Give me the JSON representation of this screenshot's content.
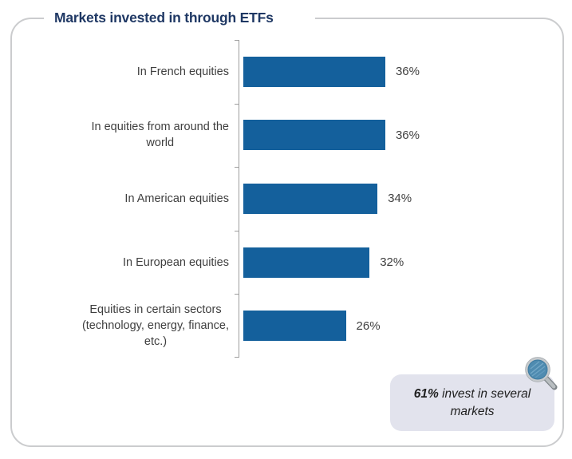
{
  "title": "Markets invested in through ETFs",
  "chart_data": {
    "type": "bar",
    "orientation": "horizontal",
    "title": "Markets invested in through ETFs",
    "categories": [
      "In French equities",
      "In equities from around the\nworld",
      "In American equities",
      "In European equities",
      "Equities in certain sectors\n(technology, energy, finance,\netc.)"
    ],
    "values": [
      36,
      36,
      34,
      32,
      26
    ],
    "value_labels": [
      "36%",
      "36%",
      "34%",
      "32%",
      "26%"
    ],
    "unit": "%",
    "xlim": [
      0,
      40
    ],
    "gridlines": false,
    "legend": false,
    "bar_color": "#14609c"
  },
  "callout": {
    "stat": "61%",
    "text": "invest in several markets"
  },
  "icons": {
    "magnifier": "magnifier-icon"
  },
  "colors": {
    "bar": "#14609c",
    "title": "#1f3864",
    "label": "#3f3f3f",
    "axis": "#9e9e9e",
    "frame_border": "#cbccce",
    "callout_bg": "#e2e3ed",
    "callout_text": "#1f1f1f"
  }
}
